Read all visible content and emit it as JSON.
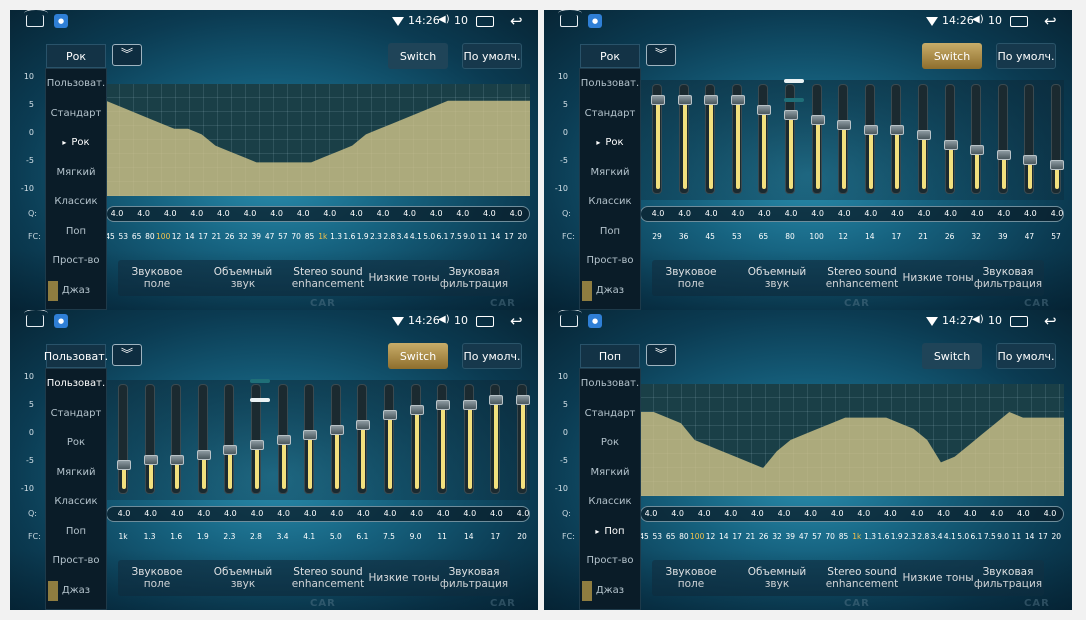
{
  "status": {
    "volume": "10"
  },
  "menu_items": [
    "Пользоват.",
    "Стандарт",
    "Рок",
    "Мягкий",
    "Классик",
    "Поп",
    "Прост-во",
    "Джаз"
  ],
  "y_axis": [
    "10",
    "5",
    "0",
    "-5",
    "-10"
  ],
  "q_label": "Q:",
  "fc_label": "FC:",
  "q_value": "4.0",
  "buttons": {
    "switch": "Switch",
    "default": "По умолч."
  },
  "tabs": [
    "Звуковое поле",
    "Объемный звук",
    "Stereo sound enhancement",
    "Низкие тоны",
    "Звуковая фильтрация"
  ],
  "fc_full": [
    "45",
    "53",
    "65",
    "80",
    "100",
    "12",
    "14",
    "17",
    "21",
    "26",
    "32",
    "39",
    "47",
    "57",
    "70",
    "85",
    "1k",
    "1.3",
    "1.6",
    "1.9",
    "2.3",
    "2.8",
    "3.4",
    "4.1",
    "5.0",
    "6.1",
    "7.5",
    "9.0",
    "11",
    "14",
    "17",
    "20"
  ],
  "fc_full_highlight": [
    "100",
    "1k"
  ],
  "fc_low": [
    "29",
    "36",
    "45",
    "53",
    "65",
    "80",
    "100",
    "12",
    "14",
    "17",
    "21",
    "26",
    "32",
    "39",
    "47",
    "57"
  ],
  "fc_high": [
    "1k",
    "1.3",
    "1.6",
    "1.9",
    "2.3",
    "2.8",
    "3.4",
    "4.1",
    "5.0",
    "6.1",
    "7.5",
    "9.0",
    "11",
    "14",
    "17",
    "20"
  ],
  "watermark": "CAR",
  "panels": [
    {
      "time": "14:26",
      "preset": "Рок",
      "view": "curve",
      "switch_active": false,
      "selected_index": 2,
      "curve_gain": [
        7,
        6,
        5,
        4,
        3,
        2,
        2,
        1,
        -1,
        -2,
        -3,
        -4,
        -4,
        -4,
        -4,
        -4,
        -3,
        -2,
        -1,
        1,
        2,
        3,
        4,
        5,
        6,
        7,
        7,
        7,
        7,
        7,
        7,
        7
      ]
    },
    {
      "time": "14:26",
      "preset": "Рок",
      "view": "sliders_low",
      "switch_active": true,
      "selected_index": 2,
      "page_dot": 0,
      "slider_gain": [
        8,
        8,
        8,
        8,
        6,
        5,
        4,
        3,
        2,
        2,
        1,
        -1,
        -2,
        -3,
        -4,
        -5
      ]
    },
    {
      "time": "14:26",
      "preset": "Пользоват.",
      "view": "sliders_high",
      "switch_active": true,
      "selected_index": 0,
      "page_dot": 1,
      "slider_gain": [
        -5,
        -4,
        -4,
        -3,
        -2,
        -1,
        0,
        1,
        2,
        3,
        5,
        6,
        7,
        7,
        8,
        8
      ]
    },
    {
      "time": "14:27",
      "preset": "Поп",
      "view": "curve",
      "switch_active": false,
      "selected_index": 5,
      "curve_gain": [
        5,
        5,
        4,
        3,
        0,
        -1,
        -2,
        -3,
        -4,
        -5,
        -2,
        0,
        1,
        2,
        3,
        4,
        4,
        4,
        4,
        3,
        2,
        0,
        -4,
        -3,
        -1,
        1,
        3,
        5,
        4,
        4,
        4,
        4
      ]
    }
  ]
}
